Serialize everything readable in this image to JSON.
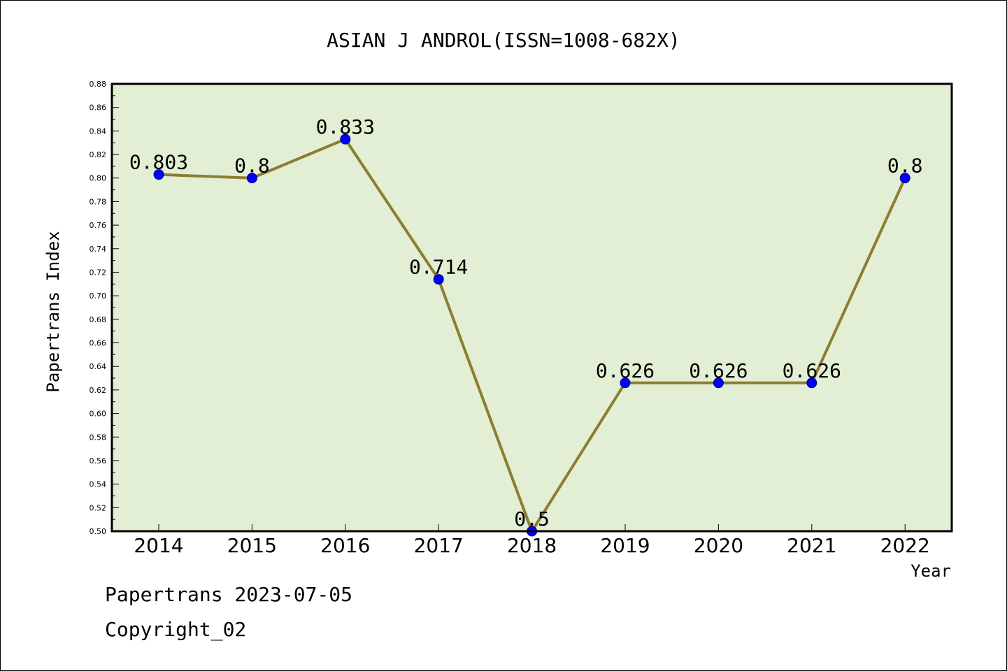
{
  "chart_data": {
    "type": "line",
    "title": "ASIAN J ANDROL(ISSN=1008-682X)",
    "xlabel": "Year",
    "ylabel": "Papertrans Index",
    "x": [
      "2014",
      "2015",
      "2016",
      "2017",
      "2018",
      "2019",
      "2020",
      "2021",
      "2022"
    ],
    "series": [
      {
        "values": [
          0.803,
          0.8,
          0.833,
          0.714,
          0.5,
          0.626,
          0.626,
          0.626,
          0.8
        ]
      }
    ],
    "data_labels": [
      "0.803",
      "0.8",
      "0.833",
      "0.714",
      "0.5",
      "0.626",
      "0.626",
      "0.626",
      "0.8"
    ],
    "ylim": [
      0.5,
      0.88
    ],
    "yticks": [
      "0.50",
      "0.52",
      "0.54",
      "0.56",
      "0.58",
      "0.60",
      "0.62",
      "0.64",
      "0.66",
      "0.68",
      "0.70",
      "0.72",
      "0.74",
      "0.76",
      "0.78",
      "0.80",
      "0.82",
      "0.84",
      "0.86",
      "0.88"
    ],
    "grid": false,
    "colors": {
      "line": "#8b7d32",
      "marker": "#0000ff",
      "plot_background": "#e2efd4"
    }
  },
  "footer": {
    "line1": "Papertrans 2023-07-05",
    "line2": "Copyright_02"
  }
}
